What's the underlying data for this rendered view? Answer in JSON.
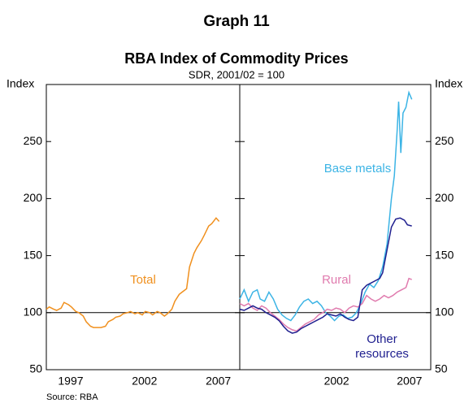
{
  "title": "Graph 11",
  "subtitle": "RBA Index of Commodity Prices",
  "note": "SDR, 2001/02 = 100",
  "source": "Source: RBA",
  "chart_data": [
    {
      "type": "line",
      "ylabel": "Index",
      "ylim": [
        50,
        300
      ],
      "yticks": [
        50,
        100,
        150,
        200,
        250
      ],
      "xlim": [
        1995.3,
        2008.4
      ],
      "xticks": [
        {
          "value": 1997.5,
          "label": "1997"
        },
        {
          "value": 2002.5,
          "label": "2002"
        },
        {
          "value": 2007.5,
          "label": "2007"
        }
      ],
      "hline": 100,
      "series": [
        {
          "name": "Total",
          "color": "#f0901e",
          "x": [
            1995.3,
            1995.5,
            1995.8,
            1996.0,
            1996.3,
            1996.5,
            1996.8,
            1997.0,
            1997.3,
            1997.5,
            1997.8,
            1998.0,
            1998.3,
            1998.5,
            1998.8,
            1999.0,
            1999.3,
            1999.5,
            1999.8,
            2000.0,
            2000.3,
            2000.5,
            2000.8,
            2001.0,
            2001.3,
            2001.5,
            2001.8,
            2002.0,
            2002.3,
            2002.5,
            2002.8,
            2003.0,
            2003.3,
            2003.5,
            2003.8,
            2004.0,
            2004.3,
            2004.5,
            2004.8,
            2005.0,
            2005.3,
            2005.5,
            2005.8,
            2006.0,
            2006.3,
            2006.5,
            2006.8,
            2007.0
          ],
          "values": [
            103,
            105,
            103,
            102,
            104,
            109,
            107,
            105,
            101,
            100,
            97,
            92,
            88,
            87,
            87,
            87,
            88,
            92,
            94,
            96,
            97,
            99,
            100,
            101,
            99,
            100,
            98,
            101,
            100,
            98,
            101,
            100,
            97,
            99,
            103,
            110,
            116,
            118,
            121,
            140,
            152,
            157,
            163,
            168,
            176,
            178,
            183,
            180
          ]
        }
      ]
    },
    {
      "type": "line",
      "ylabel": "Index",
      "ylim": [
        50,
        300
      ],
      "yticks": [
        50,
        100,
        150,
        200,
        250
      ],
      "xlim": [
        1995.3,
        2008.4
      ],
      "xticks": [
        {
          "value": 2002.5,
          "label": "2002"
        },
        {
          "value": 2007.5,
          "label": "2007"
        }
      ],
      "hline": 100,
      "series": [
        {
          "name": "Base metals",
          "color": "#3cb4e5",
          "x": [
            1995.3,
            1995.6,
            1995.9,
            1996.2,
            1996.5,
            1996.7,
            1997.0,
            1997.3,
            1997.6,
            1997.9,
            1998.2,
            1998.5,
            1998.8,
            1999.1,
            1999.4,
            1999.7,
            2000.0,
            2000.3,
            2000.6,
            2000.9,
            2001.2,
            2001.5,
            2001.8,
            2002.1,
            2002.4,
            2002.7,
            2003.0,
            2003.3,
            2003.6,
            2003.9,
            2004.2,
            2004.5,
            2004.8,
            2005.1,
            2005.4,
            2005.7,
            2005.9,
            2006.1,
            2006.2,
            2006.35,
            2006.5,
            2006.7,
            2006.9,
            2007.1
          ],
          "values": [
            112,
            120,
            110,
            118,
            120,
            112,
            110,
            118,
            112,
            103,
            98,
            95,
            93,
            98,
            105,
            110,
            112,
            108,
            110,
            106,
            100,
            97,
            93,
            97,
            98,
            95,
            96,
            100,
            108,
            118,
            125,
            122,
            128,
            140,
            160,
            200,
            220,
            260,
            285,
            240,
            275,
            280,
            293,
            287
          ]
        },
        {
          "name": "Rural",
          "color": "#e07bae",
          "x": [
            1995.3,
            1995.6,
            1995.9,
            1996.2,
            1996.5,
            1996.8,
            1997.1,
            1997.4,
            1997.7,
            1998.0,
            1998.3,
            1998.6,
            1998.9,
            1999.2,
            1999.5,
            1999.8,
            2000.1,
            2000.4,
            2000.7,
            2001.0,
            2001.3,
            2001.6,
            2001.9,
            2002.2,
            2002.5,
            2002.8,
            2003.1,
            2003.4,
            2003.7,
            2004.0,
            2004.3,
            2004.6,
            2004.9,
            2005.2,
            2005.5,
            2005.8,
            2006.1,
            2006.4,
            2006.7,
            2006.9,
            2007.1
          ],
          "values": [
            108,
            106,
            108,
            104,
            102,
            106,
            104,
            100,
            97,
            94,
            90,
            87,
            85,
            84,
            87,
            90,
            92,
            94,
            98,
            100,
            103,
            102,
            104,
            103,
            100,
            104,
            106,
            105,
            108,
            115,
            112,
            110,
            112,
            115,
            113,
            115,
            118,
            120,
            122,
            130,
            129
          ]
        },
        {
          "name": "Other resources",
          "color": "#1f1f8f",
          "x": [
            1995.3,
            1995.6,
            1995.9,
            1996.2,
            1996.5,
            1996.8,
            1997.1,
            1997.4,
            1997.7,
            1998.0,
            1998.3,
            1998.6,
            1998.9,
            1999.2,
            1999.5,
            1999.8,
            2000.1,
            2000.4,
            2000.7,
            2001.0,
            2001.3,
            2001.6,
            2001.9,
            2002.2,
            2002.5,
            2002.8,
            2003.1,
            2003.4,
            2003.7,
            2004.0,
            2004.3,
            2004.6,
            2004.9,
            2005.1,
            2005.4,
            2005.7,
            2006.0,
            2006.3,
            2006.6,
            2006.8,
            2007.1
          ],
          "values": [
            103,
            102,
            104,
            106,
            104,
            103,
            100,
            98,
            96,
            93,
            88,
            84,
            82,
            83,
            86,
            88,
            90,
            92,
            94,
            96,
            99,
            98,
            97,
            99,
            96,
            94,
            93,
            96,
            120,
            124,
            126,
            128,
            130,
            135,
            155,
            175,
            182,
            183,
            181,
            177,
            176
          ]
        }
      ]
    }
  ]
}
